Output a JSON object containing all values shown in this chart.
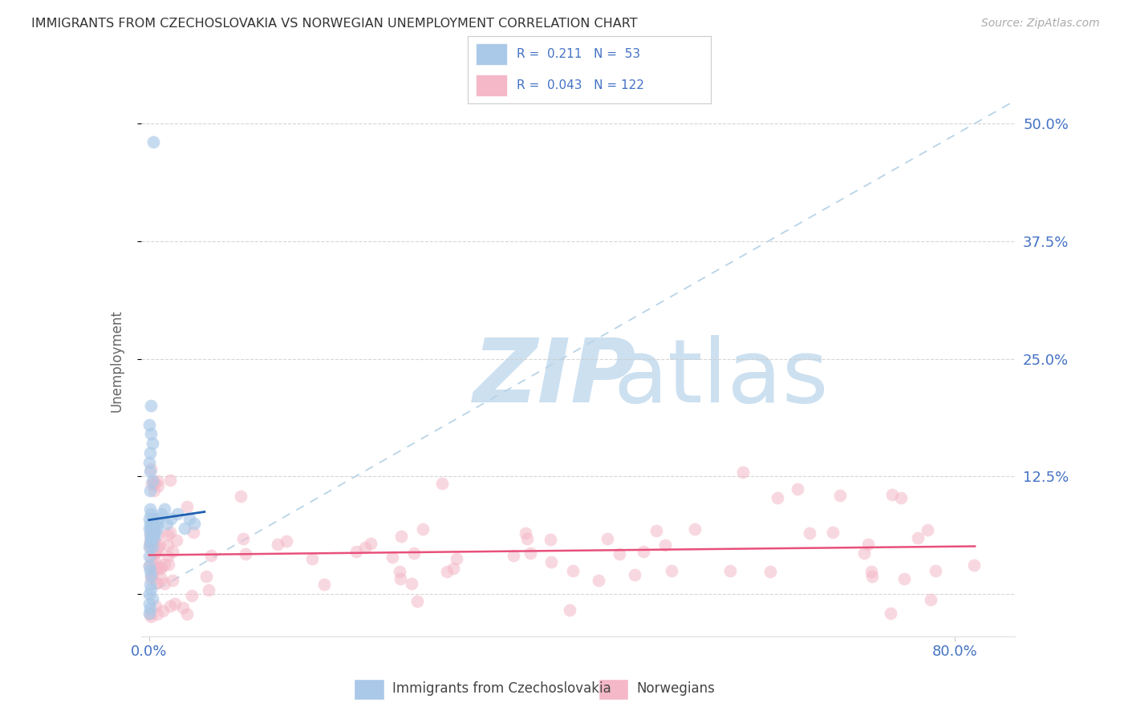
{
  "title": "IMMIGRANTS FROM CZECHOSLOVAKIA VS NORWEGIAN UNEMPLOYMENT CORRELATION CHART",
  "source": "Source: ZipAtlas.com",
  "ylabel": "Unemployment",
  "yticks": [
    0.0,
    0.125,
    0.25,
    0.375,
    0.5
  ],
  "ytick_labels": [
    "",
    "12.5%",
    "25.0%",
    "37.5%",
    "50.0%"
  ],
  "xlim": [
    -0.008,
    0.86
  ],
  "ylim": [
    -0.045,
    0.54
  ],
  "legend_line1": "R =  0.211   N =  53",
  "legend_line2": "R =  0.043   N = 122",
  "color_blue": "#aac9e8",
  "color_pink": "#f4b8c8",
  "color_blue_line": "#2060b0",
  "color_pink_line": "#e8507a",
  "color_dashed": "#b8d4e8",
  "color_axis_text": "#4472c4",
  "watermark_zip_color": "#cce0f0",
  "watermark_atlas_color": "#cce0f0",
  "bottom_legend_blue": "#aac9e8",
  "bottom_legend_pink": "#f4b8c8",
  "bottom_legend_text_blue": "#555555",
  "bottom_legend_text_pink": "#555555"
}
